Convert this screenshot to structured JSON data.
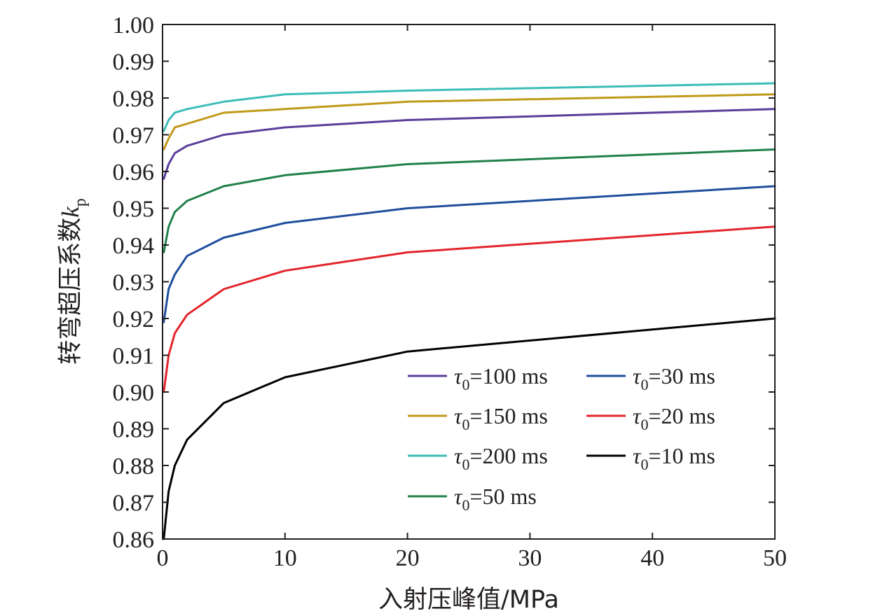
{
  "chart_data": {
    "type": "line",
    "xlabel": "入射压峰值/MPa",
    "ylabel": "转弯超压系数",
    "ylabel_symbol": "k",
    "ylabel_subscript": "p",
    "xlim": [
      0,
      50
    ],
    "ylim": [
      0.86,
      1.0
    ],
    "xticks": [
      0,
      10,
      20,
      30,
      40,
      50
    ],
    "yticks": [
      0.86,
      0.87,
      0.88,
      0.89,
      0.9,
      0.91,
      0.92,
      0.93,
      0.94,
      0.95,
      0.96,
      0.97,
      0.98,
      0.99,
      1.0
    ],
    "ytick_labels": [
      "0.86",
      "0.87",
      "0.88",
      "0.89",
      "0.90",
      "0.91",
      "0.92",
      "0.93",
      "0.94",
      "0.95",
      "0.96",
      "0.97",
      "0.98",
      "0.99",
      "1.00"
    ],
    "grid": false,
    "legend_position": "bottom-right",
    "x": [
      0.1,
      0.5,
      1,
      2,
      5,
      10,
      20,
      50
    ],
    "series": [
      {
        "name": "τ0=100 ms",
        "label_symbol": "τ",
        "label_sub": "0",
        "label_rest": "=100 ms",
        "color": "#5b3e9b",
        "values": [
          0.958,
          0.962,
          0.965,
          0.967,
          0.97,
          0.972,
          0.974,
          0.977
        ]
      },
      {
        "name": "τ0=150 ms",
        "label_symbol": "τ",
        "label_sub": "0",
        "label_rest": "=150 ms",
        "color": "#c09a1a",
        "values": [
          0.966,
          0.969,
          0.972,
          0.973,
          0.976,
          0.977,
          0.979,
          0.981
        ]
      },
      {
        "name": "τ0=200 ms",
        "label_symbol": "τ",
        "label_sub": "0",
        "label_rest": "=200 ms",
        "color": "#3dbdb8",
        "values": [
          0.971,
          0.974,
          0.976,
          0.977,
          0.979,
          0.981,
          0.982,
          0.984
        ]
      },
      {
        "name": "τ0=50 ms",
        "label_symbol": "τ",
        "label_sub": "0",
        "label_rest": "=50 ms",
        "color": "#20804a",
        "values": [
          0.938,
          0.945,
          0.949,
          0.952,
          0.956,
          0.959,
          0.962,
          0.966
        ]
      },
      {
        "name": "τ0=30 ms",
        "label_symbol": "τ",
        "label_sub": "0",
        "label_rest": "=30 ms",
        "color": "#1f4e9c",
        "values": [
          0.919,
          0.928,
          0.932,
          0.937,
          0.942,
          0.946,
          0.95,
          0.956
        ]
      },
      {
        "name": "τ0=20 ms",
        "label_symbol": "τ",
        "label_sub": "0",
        "label_rest": "=20 ms",
        "color": "#e3252b",
        "values": [
          0.9,
          0.91,
          0.916,
          0.921,
          0.928,
          0.933,
          0.938,
          0.945
        ]
      },
      {
        "name": "τ0=10 ms",
        "label_symbol": "τ",
        "label_sub": "0",
        "label_rest": "=10 ms",
        "color": "#000000",
        "values": [
          0.86,
          0.873,
          0.88,
          0.887,
          0.897,
          0.904,
          0.911,
          0.92
        ]
      }
    ]
  }
}
